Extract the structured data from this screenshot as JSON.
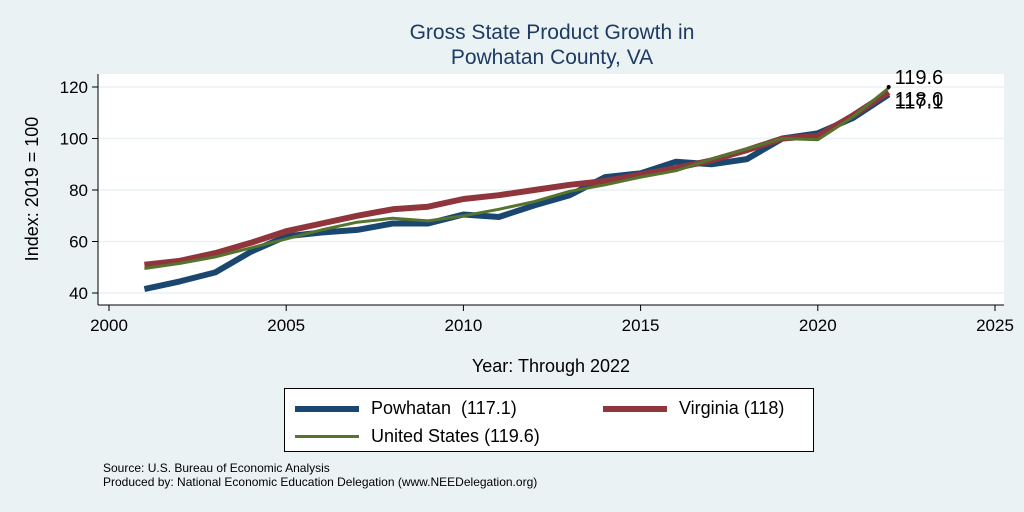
{
  "chart_data": {
    "type": "line",
    "title": "Gross State Product Growth in\nPowhatan County, VA",
    "xlabel": "Year: Through 2022",
    "ylabel": "Index: 2019 = 100",
    "xlim": [
      2000,
      2025
    ],
    "ylim": [
      36,
      124
    ],
    "xticks": [
      2000,
      2005,
      2010,
      2015,
      2020,
      2025
    ],
    "yticks": [
      40,
      60,
      80,
      100,
      120
    ],
    "grid": true,
    "legend_position": "bottom",
    "x": [
      2001,
      2002,
      2003,
      2004,
      2005,
      2006,
      2007,
      2008,
      2009,
      2010,
      2011,
      2012,
      2013,
      2014,
      2015,
      2016,
      2017,
      2018,
      2019,
      2020,
      2021,
      2022
    ],
    "series": [
      {
        "name": "Powhatan  (117.1)",
        "color": "#1a476f",
        "width": 6,
        "values": [
          41.5,
          44.5,
          48,
          56,
          62,
          63.5,
          64.5,
          67,
          67,
          70.5,
          69.5,
          74,
          78,
          85,
          86.5,
          91,
          90,
          92,
          100,
          102,
          108,
          117.1
        ]
      },
      {
        "name": "Virginia (118)",
        "color": "#90353b",
        "width": 6,
        "values": [
          51,
          52.5,
          55.5,
          59.5,
          64,
          67,
          70,
          72.5,
          73.5,
          76.5,
          78,
          80,
          82,
          83.5,
          86,
          88.5,
          91.5,
          95.5,
          100,
          101,
          109,
          118
        ]
      },
      {
        "name": "United States (119.6)",
        "color": "#55752f",
        "width": 3,
        "values": [
          49.5,
          51.5,
          54,
          57.5,
          61,
          64.5,
          67.5,
          69,
          68,
          70,
          72.5,
          75.5,
          79.5,
          82,
          85,
          87.5,
          92,
          96,
          100,
          99.5,
          108.5,
          119.6
        ]
      }
    ],
    "annotations": [
      "119.6",
      "118.0",
      "117.1"
    ],
    "source_lines": [
      "Source: U.S. Bureau of Economic Analysis",
      "Produced by: National Economic Education Delegation (www.NEEDelegation.org)"
    ]
  }
}
